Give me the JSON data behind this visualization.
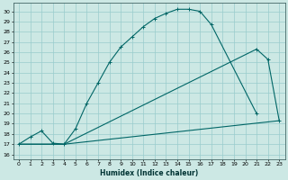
{
  "xlabel": "Humidex (Indice chaleur)",
  "bg_color": "#cce8e4",
  "grid_color": "#99cccc",
  "line_color": "#006666",
  "xlim": [
    -0.5,
    23.5
  ],
  "ylim": [
    15.5,
    30.8
  ],
  "xticks": [
    0,
    1,
    2,
    3,
    4,
    5,
    6,
    7,
    8,
    9,
    10,
    11,
    12,
    13,
    14,
    15,
    16,
    17,
    18,
    19,
    20,
    21,
    22,
    23
  ],
  "yticks": [
    16,
    17,
    18,
    19,
    20,
    21,
    22,
    23,
    24,
    25,
    26,
    27,
    28,
    29,
    30
  ],
  "curve1_x": [
    0,
    1,
    2,
    3,
    4,
    5,
    6,
    7,
    8,
    9,
    10,
    11,
    12,
    13,
    14,
    15,
    16,
    17,
    21
  ],
  "curve1_y": [
    17,
    17.7,
    18.3,
    17.1,
    17.0,
    18.5,
    21.0,
    23.0,
    25.0,
    26.5,
    27.5,
    28.5,
    29.3,
    29.8,
    30.2,
    30.2,
    30.0,
    28.7,
    20.0
  ],
  "curve2_x": [
    0,
    4,
    21
  ],
  "curve2_y": [
    17.0,
    17.0,
    26.3
  ],
  "curve3_x": [
    0,
    4,
    23
  ],
  "curve3_y": [
    17.0,
    17.0,
    19.3
  ],
  "curve4_x": [
    21,
    22,
    23
  ],
  "curve4_y": [
    26.3,
    25.3,
    19.3
  ]
}
